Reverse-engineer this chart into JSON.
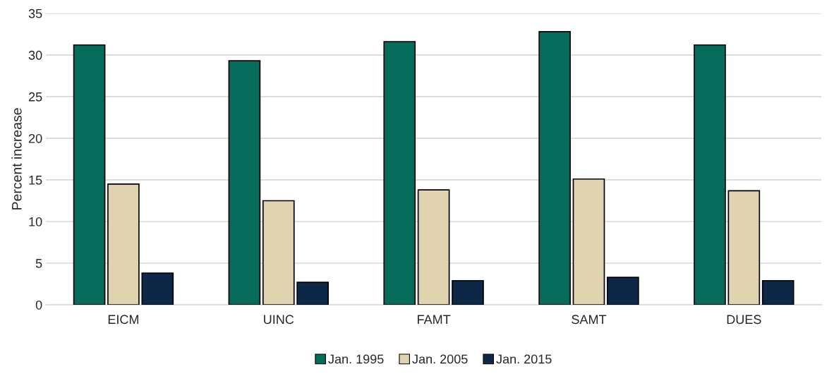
{
  "chart_data": {
    "type": "bar",
    "ylabel": "Percent increase",
    "categories": [
      "EICM",
      "UINC",
      "FAMT",
      "SAMT",
      "DUES"
    ],
    "series": [
      {
        "name": "Jan. 1995",
        "color": "#076b5c",
        "values": [
          31.2,
          29.3,
          31.6,
          32.8,
          31.2
        ]
      },
      {
        "name": "Jan. 2005",
        "color": "#e0d3b0",
        "values": [
          14.5,
          12.5,
          13.8,
          15.1,
          13.7
        ]
      },
      {
        "name": "Jan. 2015",
        "color": "#0d2846",
        "values": [
          3.8,
          2.7,
          2.9,
          3.3,
          2.9
        ]
      }
    ],
    "ylim": [
      0,
      35
    ],
    "yticks": [
      0,
      5,
      10,
      15,
      20,
      25,
      30,
      35
    ],
    "grid": "y",
    "legend": "bottom"
  }
}
